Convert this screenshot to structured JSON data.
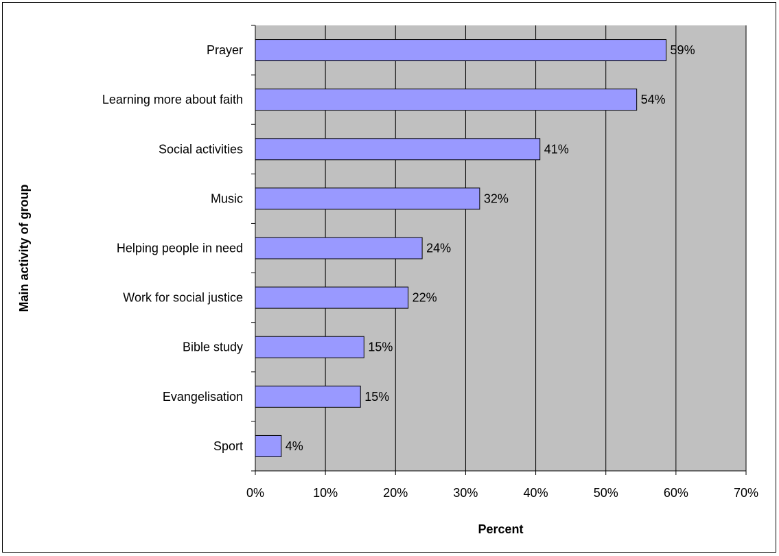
{
  "chart_data": {
    "type": "bar",
    "orientation": "horizontal",
    "title": "",
    "xlabel": "Percent",
    "ylabel": "Main activity of group",
    "categories": [
      "Prayer",
      "Learning more about faith",
      "Social activities",
      "Music",
      "Helping people in need",
      "Work for social justice",
      "Bible study",
      "Evangelisation",
      "Sport"
    ],
    "values": [
      58.6,
      54.4,
      40.6,
      32.0,
      23.8,
      21.8,
      15.5,
      15.0,
      3.7
    ],
    "data_labels": [
      "59%",
      "54%",
      "41%",
      "32%",
      "24%",
      "22%",
      "15%",
      "15%",
      "4%"
    ],
    "xlim": [
      0,
      70
    ],
    "xticks": [
      "0%",
      "10%",
      "20%",
      "30%",
      "40%",
      "50%",
      "60%",
      "70%"
    ],
    "grid": "vertical",
    "legend": "none",
    "colors": {
      "bar_fill": "#9999ff",
      "bar_stroke": "#000000",
      "plot_background": "#c0c0c0",
      "gridline": "#000000"
    }
  }
}
